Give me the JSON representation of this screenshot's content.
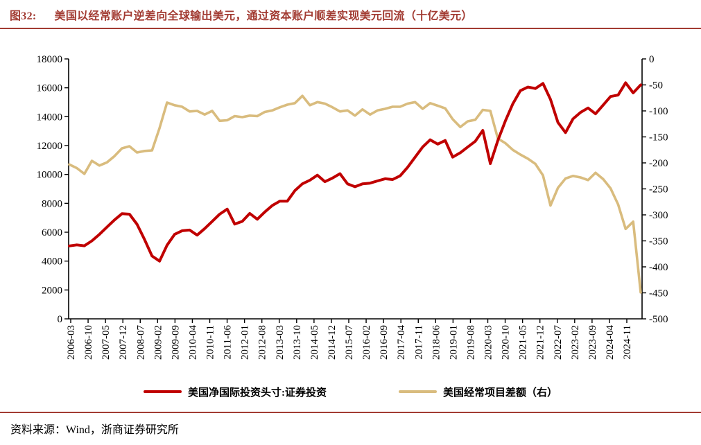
{
  "figure": {
    "label": "图32:",
    "title": "美国以经常账户逆差向全球输出美元，通过资本账户顺差实现美元回流（十亿美元）"
  },
  "source": {
    "text": "资料来源：Wind，浙商证券研究所"
  },
  "colors": {
    "accent_red": "#A23B32",
    "series_red": "#C00000",
    "series_tan": "#D9BC7E",
    "axis": "#000000"
  },
  "chart_data": {
    "type": "line",
    "grid": false,
    "legend_position": "bottom",
    "x_tick_labels": [
      "2006-03",
      "2006-10",
      "2007-05",
      "2007-12",
      "2008-07",
      "2009-02",
      "2009-09",
      "2010-04",
      "2010-11",
      "2011-06",
      "2012-01",
      "2012-08",
      "2013-03",
      "2013-10",
      "2014-05",
      "2014-12",
      "2015-07",
      "2016-02",
      "2016-09",
      "2017-04",
      "2017-11",
      "2018-06",
      "2019-01",
      "2019-08",
      "2020-03",
      "2020-10",
      "2021-05",
      "2021-12",
      "2022-07",
      "2023-02",
      "2023-09",
      "2024-04",
      "2024-11"
    ],
    "left_axis": {
      "min": 0,
      "max": 18000,
      "step": 2000,
      "ticks": [
        0,
        2000,
        4000,
        6000,
        8000,
        10000,
        12000,
        14000,
        16000,
        18000
      ]
    },
    "right_axis": {
      "min": -500,
      "max": 0,
      "step": 50,
      "ticks": [
        0,
        -50,
        -100,
        -150,
        -200,
        -250,
        -300,
        -350,
        -400,
        -450,
        -500
      ]
    },
    "x": [
      "2006-03",
      "2006-06",
      "2006-09",
      "2006-12",
      "2007-03",
      "2007-06",
      "2007-09",
      "2007-12",
      "2008-03",
      "2008-06",
      "2008-09",
      "2008-12",
      "2009-03",
      "2009-06",
      "2009-09",
      "2009-12",
      "2010-03",
      "2010-06",
      "2010-09",
      "2010-12",
      "2011-03",
      "2011-06",
      "2011-09",
      "2011-12",
      "2012-03",
      "2012-06",
      "2012-09",
      "2012-12",
      "2013-03",
      "2013-06",
      "2013-09",
      "2013-12",
      "2014-03",
      "2014-06",
      "2014-09",
      "2014-12",
      "2015-03",
      "2015-06",
      "2015-09",
      "2015-12",
      "2016-03",
      "2016-06",
      "2016-09",
      "2016-12",
      "2017-03",
      "2017-06",
      "2017-09",
      "2017-12",
      "2018-03",
      "2018-06",
      "2018-09",
      "2018-12",
      "2019-03",
      "2019-06",
      "2019-09",
      "2019-12",
      "2020-03",
      "2020-06",
      "2020-09",
      "2020-12",
      "2021-03",
      "2021-06",
      "2021-09",
      "2021-12",
      "2022-03",
      "2022-06",
      "2022-09",
      "2022-12",
      "2023-03",
      "2023-06",
      "2023-09",
      "2023-12",
      "2024-03",
      "2024-06",
      "2024-09",
      "2024-12",
      "2025-03"
    ],
    "series": [
      {
        "name": "美国净国际投资头寸:证券投资",
        "axis": "left",
        "color": "#C00000",
        "width": 4,
        "values": [
          5050,
          5120,
          5060,
          5400,
          5850,
          6350,
          6850,
          7280,
          7250,
          6550,
          5500,
          4350,
          4000,
          5100,
          5850,
          6100,
          6150,
          5800,
          6250,
          6750,
          7250,
          7600,
          6560,
          6750,
          7300,
          6900,
          7400,
          7850,
          8150,
          8150,
          8880,
          9350,
          9600,
          9950,
          9500,
          9750,
          10050,
          9350,
          9150,
          9350,
          9400,
          9550,
          9700,
          9650,
          9900,
          10500,
          11200,
          11900,
          12400,
          12100,
          12350,
          11200,
          11500,
          11900,
          12300,
          13050,
          10750,
          12350,
          13700,
          14900,
          15800,
          16050,
          15950,
          16300,
          15200,
          13600,
          12900,
          13850,
          14300,
          14600,
          14200,
          14800,
          15400,
          15500,
          16350,
          15650,
          16200
        ]
      },
      {
        "name": "美国经常项目差额（右）",
        "axis": "right",
        "color": "#D9BC7E",
        "width": 3.6,
        "values": [
          -203,
          -210,
          -221,
          -196,
          -205,
          -199,
          -187,
          -172,
          -168,
          -180,
          -177,
          -176,
          -133,
          -84,
          -89,
          -92,
          -101,
          -100,
          -107,
          -100,
          -119,
          -118,
          -110,
          -112,
          -109,
          -110,
          -102,
          -99,
          -93,
          -88,
          -85,
          -71,
          -89,
          -83,
          -86,
          -93,
          -101,
          -99,
          -109,
          -97,
          -107,
          -99,
          -96,
          -92,
          -92,
          -86,
          -83,
          -96,
          -85,
          -90,
          -95,
          -116,
          -131,
          -120,
          -117,
          -98,
          -100,
          -153,
          -162,
          -175,
          -184,
          -192,
          -202,
          -224,
          -282,
          -248,
          -230,
          -225,
          -228,
          -233,
          -219,
          -231,
          -249,
          -280,
          -327,
          -313,
          -449
        ]
      }
    ]
  }
}
